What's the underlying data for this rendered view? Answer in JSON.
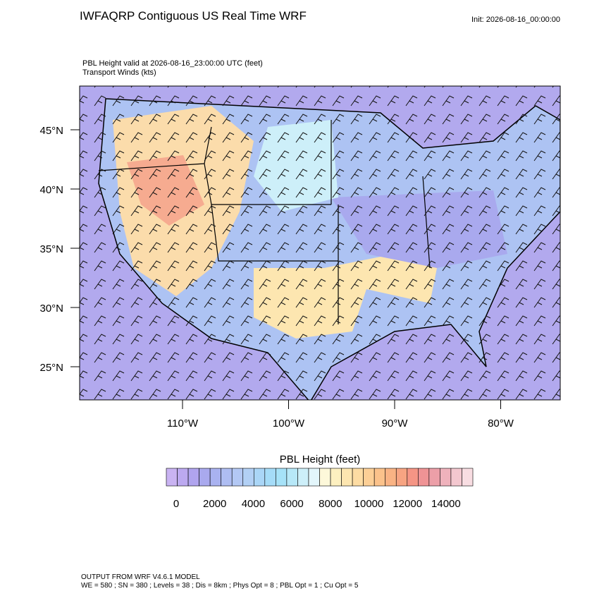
{
  "header": {
    "title": "IWFAQRP Contiguous US Real Time WRF",
    "init": "Init: 2026-08-16_00:00:00"
  },
  "subtitle": [
    "PBL Height valid at 2026-08-16_23:00:00 UTC   (feet)",
    "Transport Winds   (kts)"
  ],
  "map": {
    "lat_labels": [
      "45°N",
      "40°N",
      "35°N",
      "30°N",
      "25°N"
    ],
    "lon_labels": [
      "110°W",
      "100°W",
      "90°W",
      "80°W"
    ]
  },
  "colorbar": {
    "title": "PBL Height  (feet)",
    "colors": [
      "#c9b3f2",
      "#bca9f0",
      "#b0a4ee",
      "#a9a9ee",
      "#a9b2f0",
      "#aebdf2",
      "#b3c8f4",
      "#b2d0f5",
      "#aad6f7",
      "#a5dcf8",
      "#a6e2f8",
      "#b7e8f8",
      "#cdeff9",
      "#e3f6fb",
      "#fdf8da",
      "#fdf0c0",
      "#fde6b0",
      "#fddca3",
      "#fccf96",
      "#fbc28b",
      "#f9b384",
      "#f7a482",
      "#f59585",
      "#ef9395",
      "#ec9fa8",
      "#efb2bc",
      "#f3c7cf",
      "#f8dde2"
    ],
    "ticks": [
      0,
      2000,
      4000,
      6000,
      8000,
      10000,
      12000,
      14000
    ]
  },
  "footer": [
    "OUTPUT FROM WRF V4.6.1 MODEL",
    "WE = 580 ; SN = 380 ; Levels = 38 ; Dis = 8km ; Phys Opt = 8 ; PBL Opt = 1 ; Cu Opt = 5"
  ]
}
